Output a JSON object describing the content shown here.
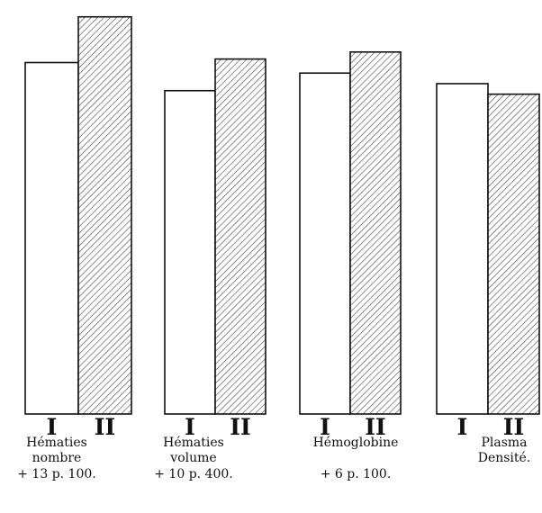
{
  "chart_data": {
    "type": "bar",
    "title": "",
    "xlabel": "",
    "ylabel": "",
    "series_labels": [
      "I",
      "II"
    ],
    "groups": [
      {
        "caption": [
          "Hématies",
          "nombre",
          "+ 13 p. 100."
        ],
        "values": [
          100,
          113
        ],
        "bar_labels": [
          "I",
          "II"
        ]
      },
      {
        "caption": [
          "Hématies",
          "volume",
          "+ 10 p. 400."
        ],
        "values": [
          92,
          101
        ],
        "bar_labels": [
          "I",
          "II"
        ]
      },
      {
        "caption": [
          "Hémoglobine",
          "",
          "+ 6 p. 100."
        ],
        "values": [
          97,
          103
        ],
        "bar_labels": [
          "I",
          "II"
        ]
      },
      {
        "caption": [
          "Plasma",
          "Densité.",
          ""
        ],
        "values": [
          94,
          91
        ],
        "bar_labels": [
          "I",
          "II"
        ]
      }
    ],
    "fills": {
      "I": "#ffffff",
      "II": "hatched"
    },
    "colors": {
      "ink": "#111111",
      "hatch": "#444444",
      "paper": "#ffffff"
    }
  }
}
